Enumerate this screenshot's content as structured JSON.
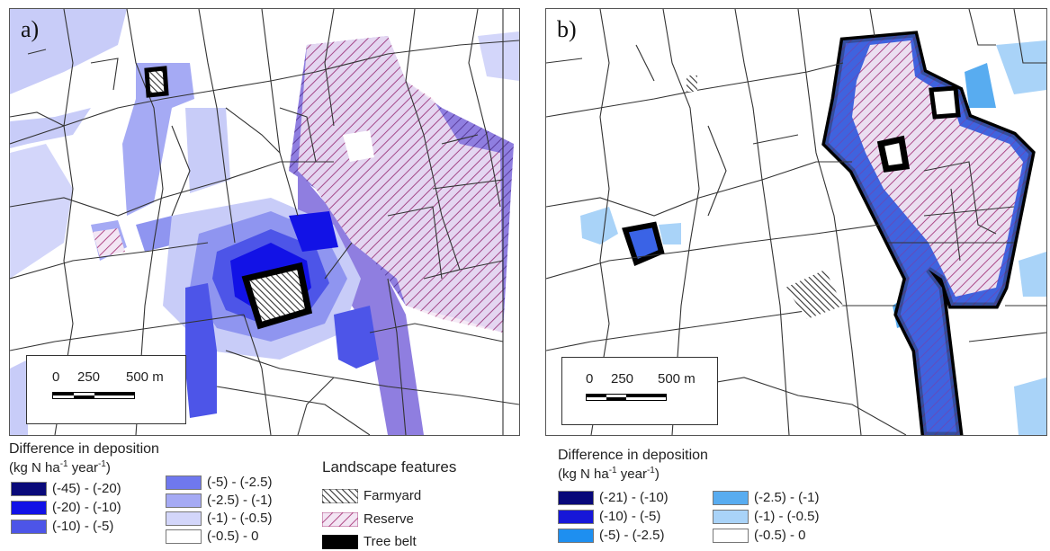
{
  "panel_a": {
    "label": "a)",
    "scale": {
      "zero": "0",
      "mid": "250",
      "end": "500 m"
    },
    "legend": {
      "title": "Difference in deposition",
      "unit_prefix": "(kg N ha",
      "unit_sup1": "-1",
      "unit_mid": " year",
      "unit_sup2": "-1",
      "unit_suffix": ")",
      "classes": [
        {
          "label": "(-45) - (-20)",
          "color": "#0a0a7a"
        },
        {
          "label": "(-20) - (-10)",
          "color": "#1212e6"
        },
        {
          "label": "(-10) - (-5)",
          "color": "#4d55e8"
        },
        {
          "label": "(-5) - (-2.5)",
          "color": "#6f78ee"
        },
        {
          "label": "(-2.5) - (-1)",
          "color": "#a5aaf4"
        },
        {
          "label": "(-1) - (-0.5)",
          "color": "#d3d6fa"
        },
        {
          "label": "(-0.5) - 0",
          "color": "#ffffff"
        }
      ]
    }
  },
  "panel_b": {
    "label": "b)",
    "scale": {
      "zero": "0",
      "mid": "250",
      "end": "500 m"
    },
    "legend": {
      "title": "Difference in deposition",
      "unit_prefix": "(kg N ha",
      "unit_sup1": "-1",
      "unit_mid": " year",
      "unit_sup2": "-1",
      "unit_suffix": ")",
      "classes": [
        {
          "label": "(-21) - (-10)",
          "color": "#08087a"
        },
        {
          "label": "(-10) - (-5)",
          "color": "#1717d8"
        },
        {
          "label": "(-5) - (-2.5)",
          "color": "#1e8ff0"
        },
        {
          "label": "(-2.5) - (-1)",
          "color": "#58acf0"
        },
        {
          "label": "(-1) - (-0.5)",
          "color": "#a9d3f8"
        },
        {
          "label": "(-0.5) - 0",
          "color": "#ffffff"
        }
      ]
    }
  },
  "landscape_features": {
    "title": "Landscape features",
    "items": [
      {
        "label": "Farmyard",
        "icon": "farmyard-hatch"
      },
      {
        "label": "Reserve",
        "icon": "reserve-hatch"
      },
      {
        "label": "Tree belt",
        "icon": "tree-belt-solid"
      }
    ]
  },
  "colors": {
    "reserve_hatch": "#c0457a",
    "tree_belt": "#000000",
    "field_lines": "#333333"
  }
}
